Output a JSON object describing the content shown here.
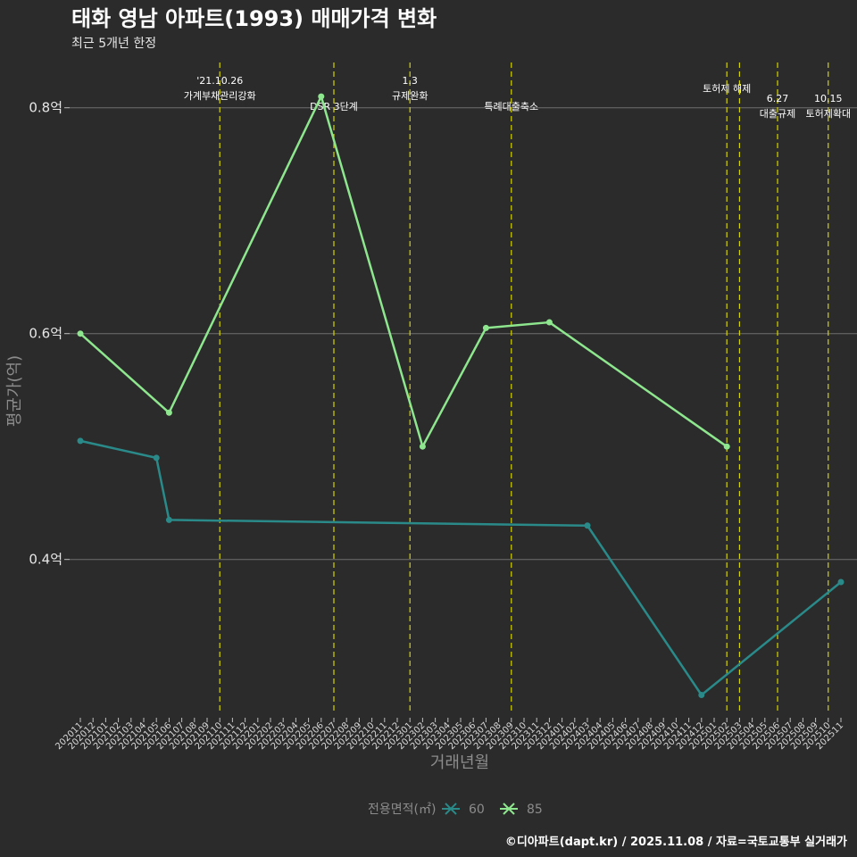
{
  "header": {
    "title": "태화 영남 아파트(1993) 매매가격 변화",
    "subtitle": "최근 5개년 한정"
  },
  "caption": "©디아파트(dapt.kr) / 2025.11.08 / 자료=국토교통부 실거래가",
  "chart_data": {
    "type": "line",
    "title": "태화 영남 아파트(1993) 매매가격 변화",
    "xlabel": "거래년월",
    "ylabel": "평균가(억)",
    "ylim": [
      0.263,
      0.848
    ],
    "yticks": [
      {
        "value": 0.4,
        "label": "0.4억"
      },
      {
        "value": 0.6,
        "label": "0.6억"
      },
      {
        "value": 0.8,
        "label": "0.8억"
      }
    ],
    "categories": [
      "202011",
      "202012",
      "202101",
      "202102",
      "202103",
      "202104",
      "202105",
      "202106",
      "202107",
      "202108",
      "202109",
      "202110",
      "202111",
      "202112",
      "202201",
      "202202",
      "202203",
      "202204",
      "202205",
      "202206",
      "202207",
      "202208",
      "202209",
      "202210",
      "202211",
      "202212",
      "202301",
      "202302",
      "202303",
      "202304",
      "202305",
      "202306",
      "202307",
      "202308",
      "202309",
      "202310",
      "202311",
      "202312",
      "202401",
      "202402",
      "202403",
      "202404",
      "202405",
      "202406",
      "202407",
      "202408",
      "202409",
      "202410",
      "202411",
      "202412",
      "202501",
      "202502",
      "202503",
      "202504",
      "202505",
      "202506",
      "202507",
      "202508",
      "202509",
      "202510",
      "202511"
    ],
    "legend_title": "전용면적(㎡)",
    "series": [
      {
        "name": "60",
        "color": "#2a8a8a",
        "points": [
          {
            "x": "202011",
            "y": 0.505
          },
          {
            "x": "202105",
            "y": 0.49
          },
          {
            "x": "202106",
            "y": 0.435
          },
          {
            "x": "202403",
            "y": 0.43
          },
          {
            "x": "202412",
            "y": 0.28
          },
          {
            "x": "202511",
            "y": 0.38
          }
        ]
      },
      {
        "name": "85",
        "color": "#8ee68e",
        "points": [
          {
            "x": "202011",
            "y": 0.6
          },
          {
            "x": "202106",
            "y": 0.53
          },
          {
            "x": "202206",
            "y": 0.81
          },
          {
            "x": "202302",
            "y": 0.5
          },
          {
            "x": "202307",
            "y": 0.605
          },
          {
            "x": "202312",
            "y": 0.61
          },
          {
            "x": "202502",
            "y": 0.5
          }
        ]
      }
    ],
    "events": [
      {
        "x": "202110",
        "lines": [
          "'21.10.26",
          "가계부채관리강화"
        ],
        "row": "high"
      },
      {
        "x": "202207",
        "lines": [
          "DSR 3단계"
        ],
        "row": "low"
      },
      {
        "x": "202301",
        "lines": [
          "1.3",
          "규제완화"
        ],
        "row": "high"
      },
      {
        "x": "202309",
        "lines": [
          "특례대출축소"
        ],
        "row": "low"
      },
      {
        "x": "202502",
        "lines": [
          "토허제 해제"
        ],
        "row": "mid"
      },
      {
        "x": "202503",
        "lines": [],
        "row": "mid"
      },
      {
        "x": "202506",
        "lines": [
          "6.27",
          "대출규제"
        ],
        "row": "lowest"
      },
      {
        "x": "202510",
        "lines": [
          "10.15",
          "토허제확대"
        ],
        "row": "lowest"
      }
    ]
  }
}
